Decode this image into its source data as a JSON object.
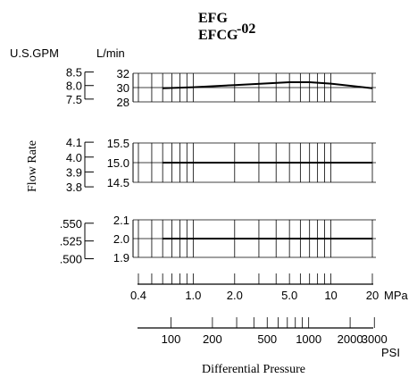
{
  "chart_data": {
    "type": "line",
    "title_line1": "EFG",
    "title_line2": "EFCG",
    "title_suffix": "-02",
    "unit_gpm": "U.S.GPM",
    "unit_lpm": "L/min",
    "ylabel": "Flow Rate",
    "xlabel": "Differential Pressure",
    "x_scale": "log",
    "x_unit_mpa": "MPa",
    "x_unit_psi": "PSI",
    "xlim_mpa": [
      0.4,
      20
    ],
    "mpa_tick_labels": [
      {
        "v": 0.4,
        "t": "0.4"
      },
      {
        "v": 1.0,
        "t": "1.0"
      },
      {
        "v": 2.0,
        "t": "2.0"
      },
      {
        "v": 5.0,
        "t": "5.0"
      },
      {
        "v": 10,
        "t": "10"
      },
      {
        "v": 20,
        "t": "20"
      }
    ],
    "mpa_minor_ticks": [
      0.4,
      0.5,
      0.6,
      0.7,
      0.8,
      0.9,
      1,
      2,
      3,
      4,
      5,
      6,
      7,
      8,
      9,
      10,
      20
    ],
    "grid_x_mpa": [
      0.4,
      0.5,
      0.6,
      0.7,
      0.8,
      0.9,
      1,
      2,
      3,
      4,
      5,
      6,
      7,
      8,
      9,
      10,
      20
    ],
    "psi_tick_labels": [
      {
        "v": 100,
        "t": "100"
      },
      {
        "v": 200,
        "t": "200"
      },
      {
        "v": 500,
        "t": "500"
      },
      {
        "v": 1000,
        "t": "1000"
      },
      {
        "v": 2000,
        "t": "2000"
      },
      {
        "v": 3000,
        "t": "3000"
      }
    ],
    "psi_minor_ticks": [
      100,
      200,
      300,
      400,
      500,
      600,
      700,
      800,
      900,
      1000,
      2000,
      3000
    ],
    "panels": [
      {
        "ylim_lpm": [
          28,
          32
        ],
        "lpm_ticks": [
          {
            "v": 28,
            "t": "28"
          },
          {
            "v": 30,
            "t": "30"
          },
          {
            "v": 32,
            "t": "32"
          }
        ],
        "gpm_ticks": [
          {
            "v": 7.5,
            "t": "7.5"
          },
          {
            "v": 8.0,
            "t": "8.0"
          },
          {
            "v": 8.5,
            "t": "8.5"
          }
        ],
        "series": {
          "x_mpa": [
            0.6,
            1,
            2,
            5,
            7,
            10,
            20
          ],
          "y_lpm": [
            29.9,
            30.05,
            30.35,
            30.75,
            30.75,
            30.55,
            29.9
          ]
        }
      },
      {
        "ylim_lpm": [
          14.5,
          15.5
        ],
        "lpm_ticks": [
          {
            "v": 14.5,
            "t": "14.5"
          },
          {
            "v": 15.0,
            "t": "15.0"
          },
          {
            "v": 15.5,
            "t": "15.5"
          }
        ],
        "gpm_ticks": [
          {
            "v": 3.8,
            "t": "3.8"
          },
          {
            "v": 3.9,
            "t": "3.9"
          },
          {
            "v": 4.0,
            "t": "4.0"
          },
          {
            "v": 4.1,
            "t": "4.1"
          }
        ],
        "series": {
          "x_mpa": [
            0.6,
            20
          ],
          "y_lpm": [
            15.0,
            15.0
          ]
        }
      },
      {
        "ylim_lpm": [
          1.9,
          2.1
        ],
        "lpm_ticks": [
          {
            "v": 1.9,
            "t": "1.9"
          },
          {
            "v": 2.0,
            "t": "2.0"
          },
          {
            "v": 2.1,
            "t": "2.1"
          }
        ],
        "gpm_ticks": [
          {
            "v": 0.5,
            "t": ".500"
          },
          {
            "v": 0.525,
            "t": ".525"
          },
          {
            "v": 0.55,
            "t": ".550"
          }
        ],
        "series": {
          "x_mpa": [
            0.6,
            20
          ],
          "y_lpm": [
            2.0,
            2.0
          ]
        }
      }
    ],
    "grid": true,
    "legend": "none"
  }
}
